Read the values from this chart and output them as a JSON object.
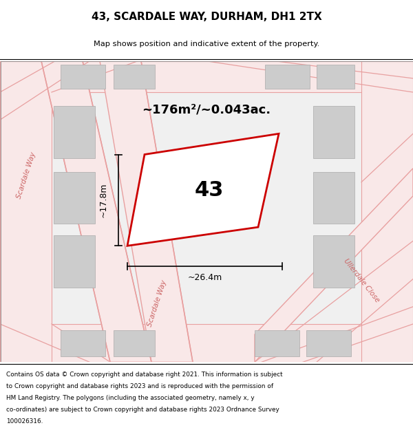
{
  "title_line1": "43, SCARDALE WAY, DURHAM, DH1 2TX",
  "title_line2": "Map shows position and indicative extent of the property.",
  "area_text": "~176m²/~0.043ac.",
  "property_number": "43",
  "dim_width": "~26.4m",
  "dim_height": "~17.8m",
  "street_label_left": "Scardale Way",
  "street_label_diag": "Scardale Way",
  "street_label_right": "Ullerdale Close",
  "footer_lines": [
    "Contains OS data © Crown copyright and database right 2021. This information is subject",
    "to Crown copyright and database rights 2023 and is reproduced with the permission of",
    "HM Land Registry. The polygons (including the associated geometry, namely x, y",
    "co-ordinates) are subject to Crown copyright and database rights 2023 Ordnance Survey",
    "100026316."
  ],
  "map_bg": "#f0f0f0",
  "road_fill": "#f9e8e8",
  "road_edge": "#e8a0a0",
  "building_color": "#cccccc",
  "building_edge": "#aaaaaa",
  "property_fill": "#ffffff",
  "property_edge": "#cc0000",
  "text_color": "#000000",
  "street_color": "#cc6666"
}
